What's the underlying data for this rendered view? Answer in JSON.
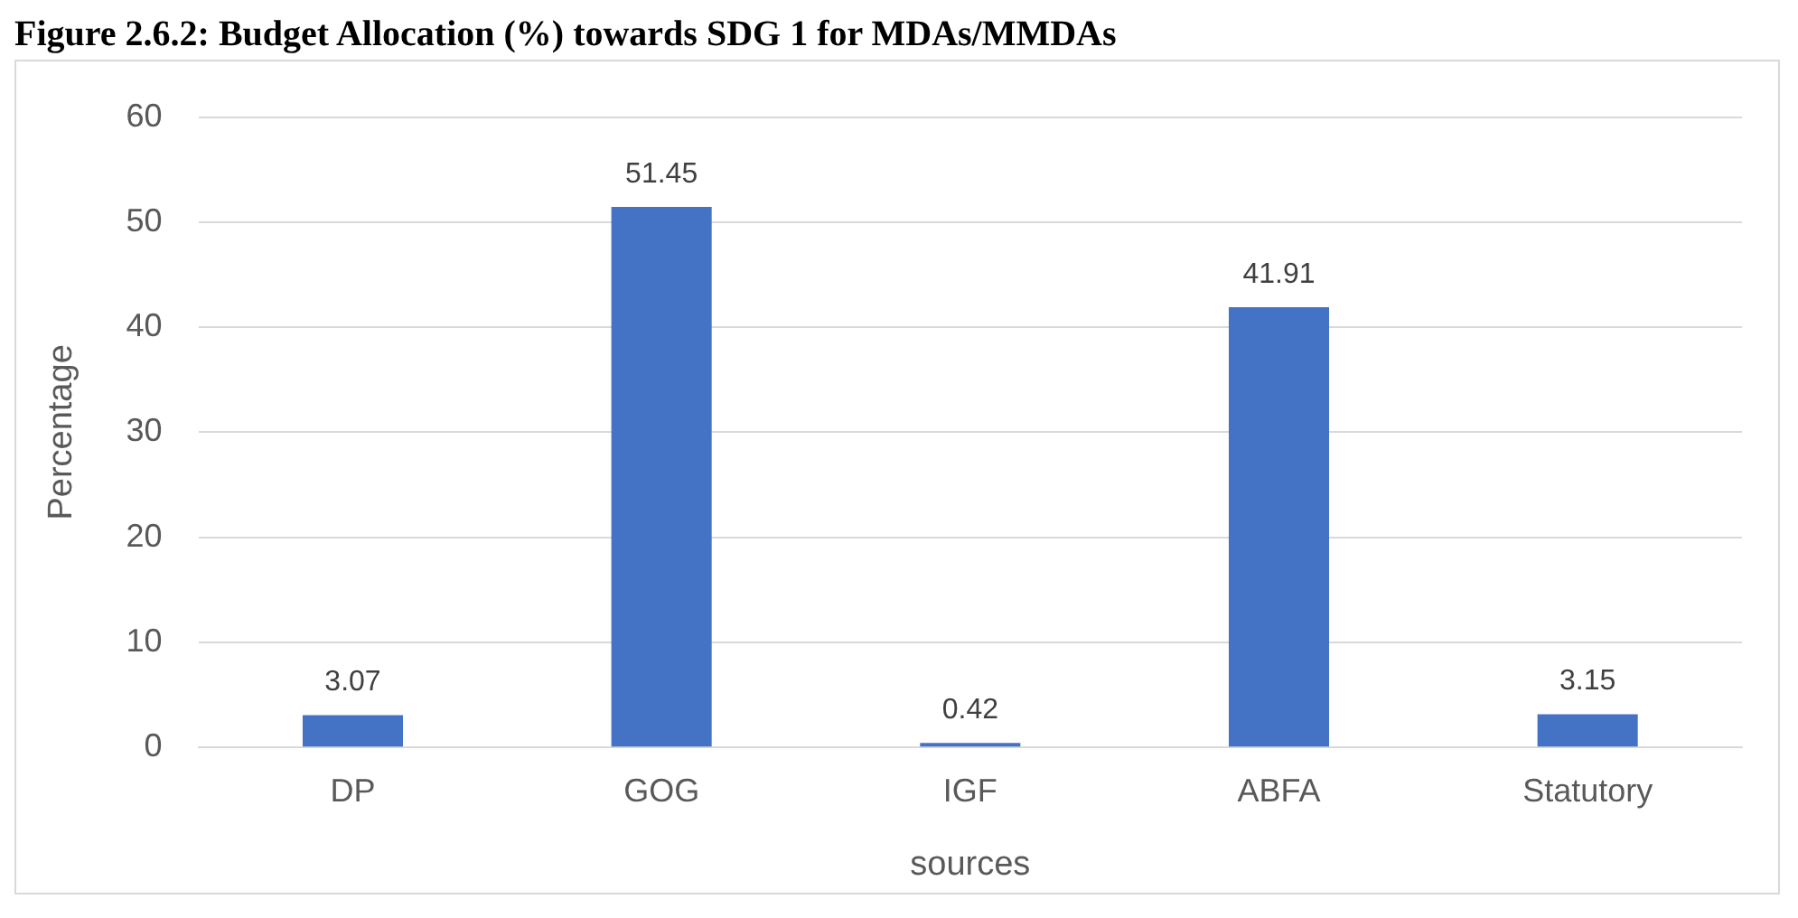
{
  "chart_data": {
    "type": "bar",
    "title": "Figure 2.6.2: Budget Allocation (%) towards SDG 1 for MDAs/MMDAs",
    "xlabel": "sources",
    "ylabel": "Percentage",
    "categories": [
      "DP",
      "GOG",
      "IGF",
      "ABFA",
      "Statutory"
    ],
    "values": [
      3.07,
      51.45,
      0.42,
      41.91,
      3.15
    ],
    "color": "#4472c4",
    "ylim": [
      0,
      60
    ],
    "yticks": [
      0,
      10,
      20,
      30,
      40,
      50,
      60
    ],
    "grid": "y",
    "data_labels": true,
    "legend": false
  }
}
